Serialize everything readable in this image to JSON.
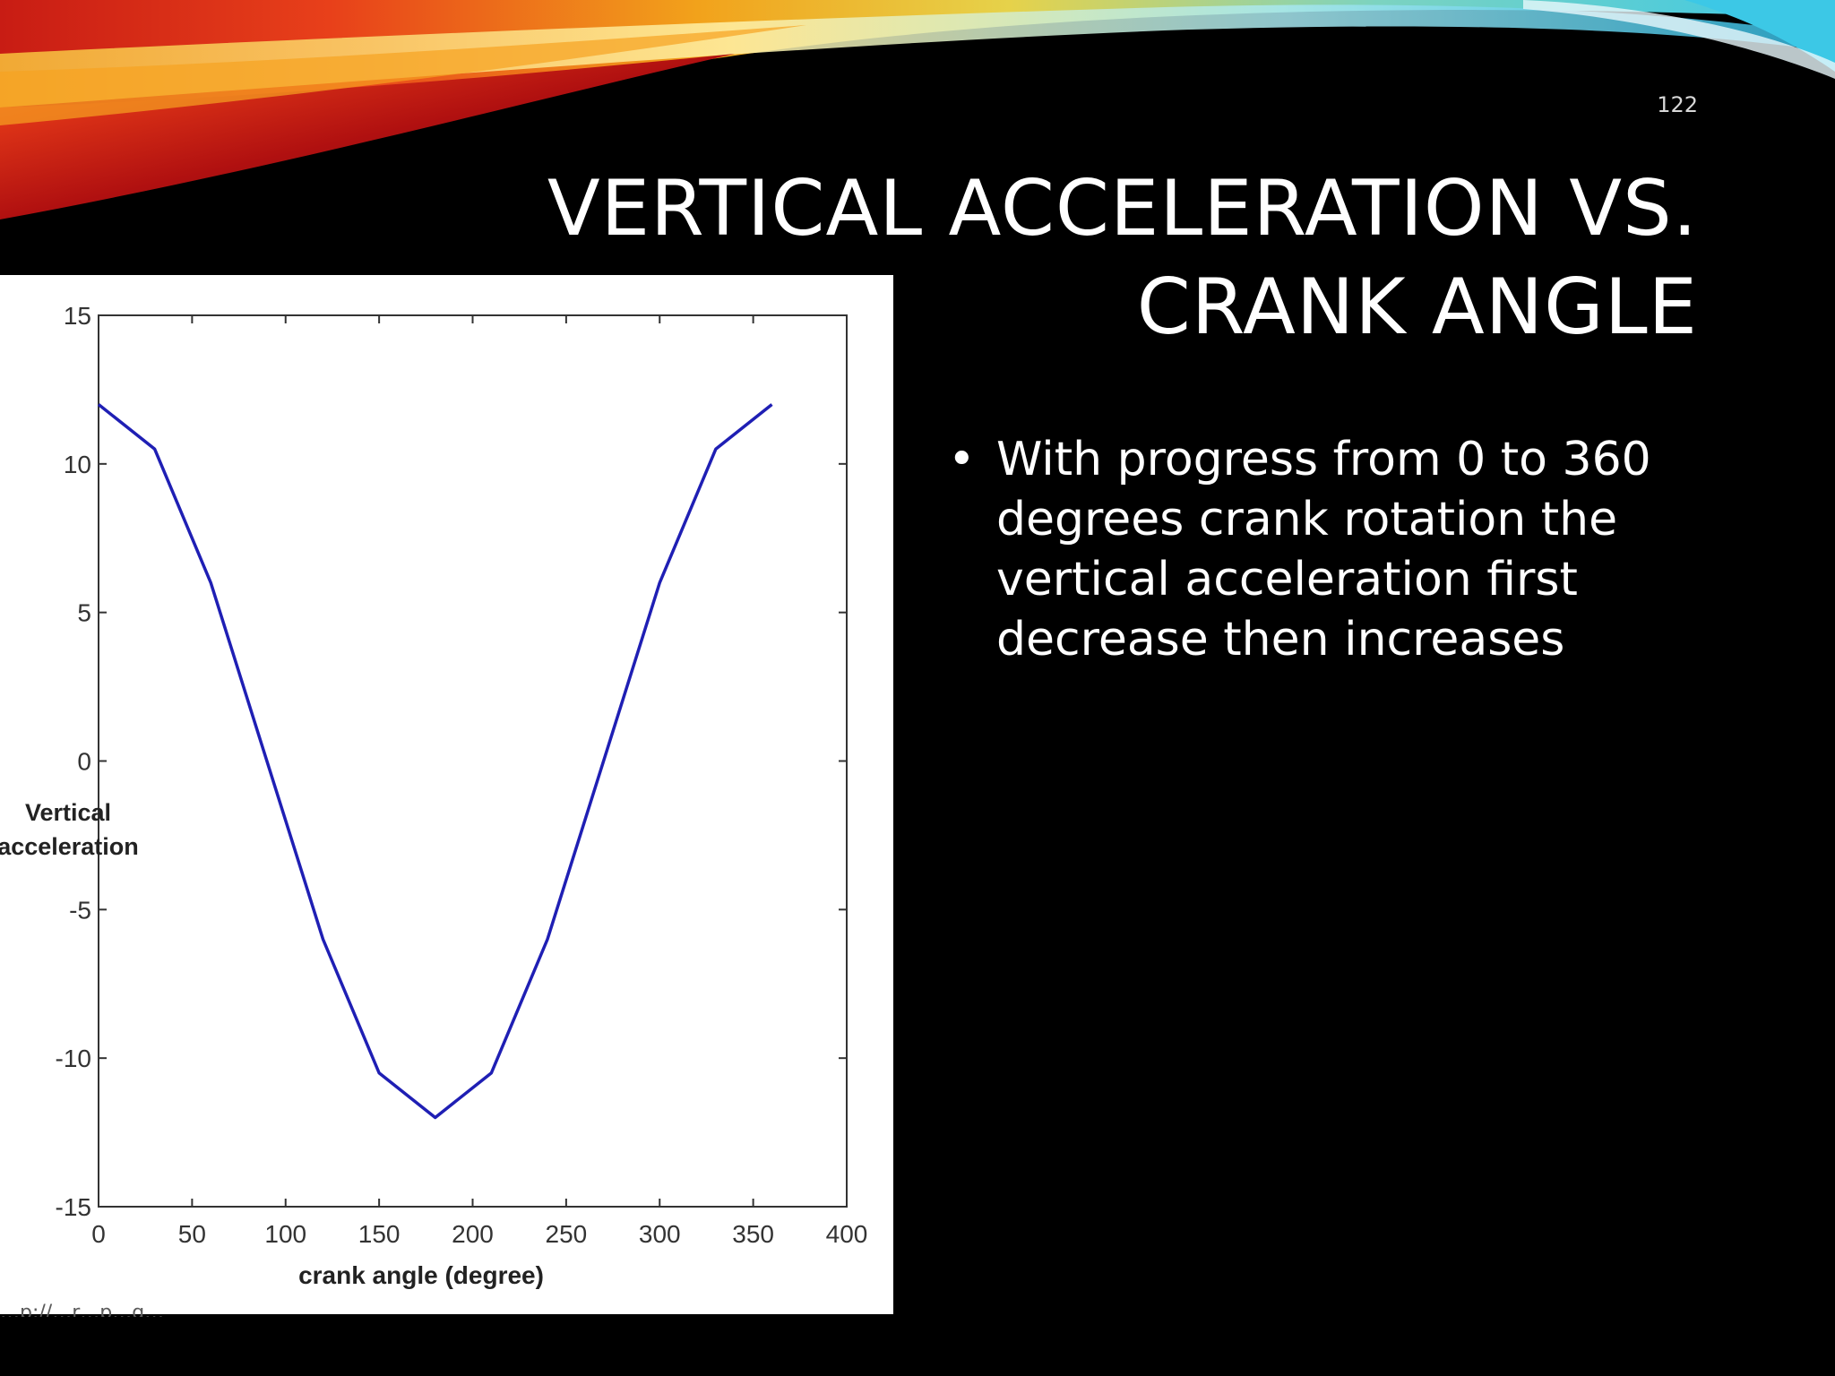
{
  "slide": {
    "page_number": "122",
    "title_line_1": "VERTICAL ACCELERATION VS.",
    "title_line_2": "CRANK ANGLE",
    "bullets": [
      "With progress from 0 to 360 degrees crank rotation the vertical acceleration first decrease then increases"
    ],
    "bullet_glyph": "•",
    "source_note": "…p://…r…p…g…"
  },
  "colors": {
    "background": "#000000",
    "line": "#1f1fb4",
    "ribbon_warm": "#e8401a",
    "ribbon_yellow": "#f2c21b",
    "ribbon_cyan": "#3cc8e6"
  },
  "chart_data": {
    "type": "line",
    "title": "",
    "xlabel": "crank angle (degree)",
    "ylabel_lines": [
      "Vertical",
      "acceleration"
    ],
    "xlim": [
      0,
      400
    ],
    "ylim": [
      -15,
      15
    ],
    "x_ticks": [
      0,
      50,
      100,
      150,
      200,
      250,
      300,
      350,
      400
    ],
    "y_ticks": [
      15,
      10,
      5,
      0,
      -5,
      -10,
      -15
    ],
    "grid": false,
    "legend": "none",
    "series": [
      {
        "x": [
          0,
          30,
          60,
          90,
          120,
          150,
          180,
          210,
          240,
          270,
          300,
          330,
          360
        ],
        "values": [
          12,
          10.5,
          6,
          0,
          -6,
          -10.5,
          -12,
          -10.5,
          -6,
          0,
          6,
          10.5,
          12
        ]
      }
    ]
  }
}
